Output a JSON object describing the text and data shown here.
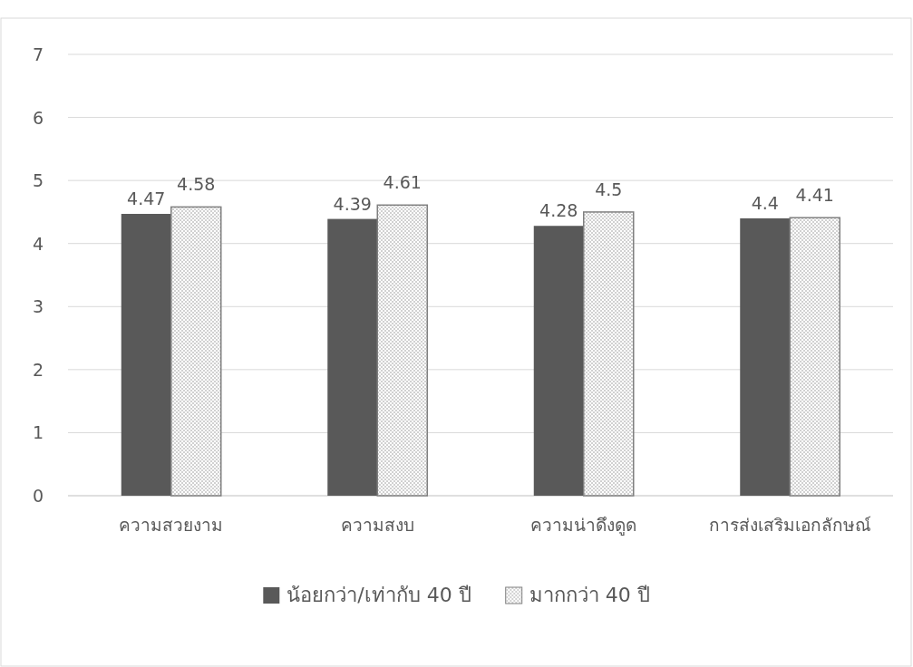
{
  "chart_data": {
    "type": "bar",
    "categories": [
      "ความสวยงาม",
      "ความสงบ",
      "ความน่าดึงดูด",
      "การส่งเสริมเอกลักษณ์"
    ],
    "series": [
      {
        "name": "น้อยกว่า/เท่ากับ 40 ปี",
        "color": "#595959",
        "values": [
          4.47,
          4.39,
          4.28,
          4.4
        ]
      },
      {
        "name": "มากกว่า 40 ปี",
        "color": "#808080",
        "values": [
          4.58,
          4.61,
          4.5,
          4.41
        ]
      }
    ],
    "ylim": [
      0,
      7
    ],
    "yticks": [
      0,
      1,
      2,
      3,
      4,
      5,
      6,
      7
    ],
    "grid": "y",
    "legend": "bottom",
    "data_labels": true
  }
}
